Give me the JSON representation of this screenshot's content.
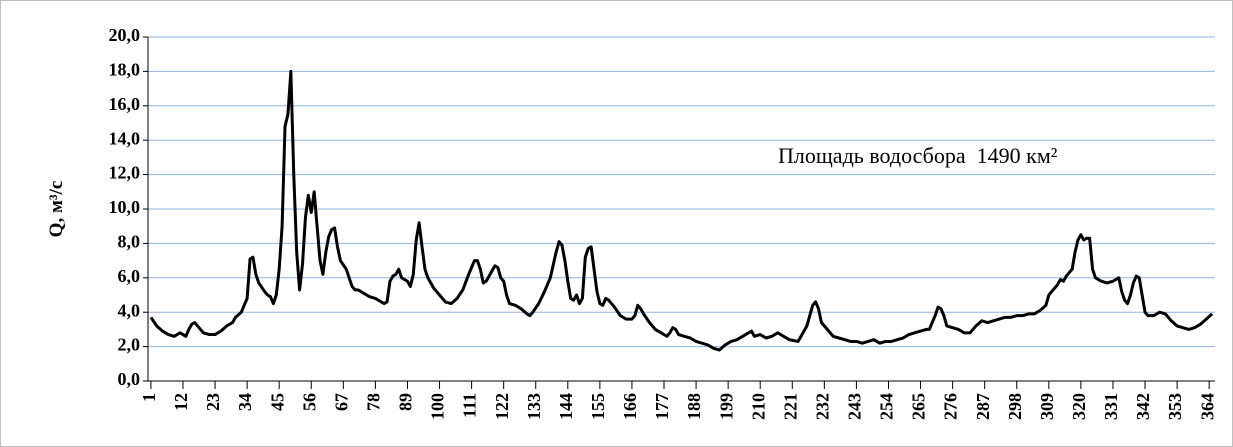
{
  "chart_data": {
    "type": "line",
    "y_label": "Q, м³/с",
    "annotation": "Площадь водосбора  1490 км²",
    "xlim": [
      0,
      366
    ],
    "xticks": [
      1,
      12,
      23,
      34,
      45,
      56,
      67,
      78,
      89,
      100,
      111,
      122,
      133,
      144,
      155,
      166,
      177,
      188,
      199,
      210,
      221,
      232,
      243,
      254,
      265,
      276,
      287,
      298,
      309,
      320,
      331,
      342,
      353,
      364
    ],
    "ylim": [
      0,
      20
    ],
    "yticks": [
      {
        "value": 0,
        "label": "0,0"
      },
      {
        "value": 2,
        "label": "2,0"
      },
      {
        "value": 4,
        "label": "4,0"
      },
      {
        "value": 6,
        "label": "6,0"
      },
      {
        "value": 8,
        "label": "8,0"
      },
      {
        "value": 10,
        "label": "10,0"
      },
      {
        "value": 12,
        "label": "12,0"
      },
      {
        "value": 14,
        "label": "14,0"
      },
      {
        "value": 16,
        "label": "16,0"
      },
      {
        "value": 18,
        "label": "18,0"
      },
      {
        "value": 20,
        "label": "20,0"
      }
    ],
    "grid": true,
    "grid_color": "#8eb4e3",
    "x": [
      1,
      3,
      5,
      7,
      9,
      11,
      12,
      13,
      14,
      15,
      16,
      17,
      19,
      21,
      23,
      25,
      27,
      29,
      30,
      32,
      33,
      34,
      35,
      36,
      37,
      38,
      40,
      41,
      42,
      43,
      44,
      45,
      46,
      47,
      48,
      49,
      50,
      51,
      52,
      53,
      54,
      55,
      56,
      57,
      58,
      59,
      60,
      61,
      62,
      63,
      64,
      65,
      66,
      68,
      69,
      70,
      71,
      72,
      73,
      74,
      76,
      78,
      80,
      81,
      82,
      83,
      84,
      85,
      86,
      87,
      89,
      90,
      91,
      92,
      93,
      94,
      95,
      96,
      98,
      100,
      102,
      104,
      106,
      108,
      110,
      112,
      113,
      114,
      115,
      116,
      118,
      119,
      120,
      121,
      122,
      123,
      124,
      126,
      128,
      130,
      131,
      132,
      134,
      136,
      138,
      140,
      141,
      142,
      143,
      144,
      145,
      146,
      147,
      148,
      149,
      150,
      151,
      152,
      153,
      154,
      155,
      156,
      157,
      158,
      160,
      162,
      164,
      166,
      167,
      168,
      169,
      170,
      172,
      174,
      176,
      178,
      179,
      180,
      181,
      182,
      184,
      186,
      188,
      190,
      192,
      194,
      196,
      198,
      200,
      202,
      204,
      206,
      207,
      208,
      210,
      212,
      214,
      216,
      218,
      220,
      223,
      226,
      228,
      229,
      230,
      231,
      233,
      235,
      237,
      239,
      241,
      243,
      245,
      247,
      249,
      251,
      253,
      255,
      257,
      259,
      261,
      263,
      265,
      267,
      268,
      270,
      271,
      272,
      273,
      274,
      276,
      278,
      280,
      282,
      284,
      286,
      288,
      290,
      292,
      294,
      296,
      298,
      300,
      302,
      304,
      306,
      308,
      309,
      310,
      312,
      313,
      314,
      315,
      317,
      318,
      319,
      320,
      321,
      322,
      323,
      324,
      325,
      327,
      329,
      331,
      332,
      333,
      334,
      335,
      336,
      337,
      338,
      339,
      340,
      341,
      342,
      343,
      345,
      347,
      349,
      351,
      353,
      355,
      357,
      359,
      361,
      363,
      365
    ],
    "series": [
      {
        "color": "#000000",
        "values": [
          3.7,
          3.2,
          2.9,
          2.7,
          2.6,
          2.8,
          2.7,
          2.6,
          3.0,
          3.3,
          3.4,
          3.2,
          2.8,
          2.7,
          2.7,
          2.9,
          3.2,
          3.4,
          3.7,
          4.0,
          4.4,
          4.8,
          7.1,
          7.2,
          6.2,
          5.7,
          5.2,
          5.0,
          4.9,
          4.5,
          5.0,
          6.5,
          9.0,
          14.8,
          15.5,
          18.0,
          12.0,
          7.5,
          5.3,
          6.8,
          9.5,
          10.8,
          9.8,
          11.0,
          9.0,
          7.0,
          6.2,
          7.5,
          8.4,
          8.8,
          8.9,
          7.8,
          7.0,
          6.5,
          6.0,
          5.5,
          5.3,
          5.3,
          5.2,
          5.1,
          4.9,
          4.8,
          4.6,
          4.5,
          4.6,
          5.8,
          6.1,
          6.2,
          6.5,
          6.0,
          5.8,
          5.5,
          6.2,
          8.2,
          9.2,
          7.8,
          6.5,
          6.0,
          5.4,
          5.0,
          4.6,
          4.5,
          4.8,
          5.3,
          6.2,
          7.0,
          7.0,
          6.5,
          5.7,
          5.8,
          6.4,
          6.7,
          6.6,
          6.0,
          5.8,
          5.0,
          4.5,
          4.4,
          4.2,
          3.9,
          3.8,
          4.0,
          4.5,
          5.2,
          6.0,
          7.5,
          8.1,
          7.9,
          7.0,
          5.8,
          4.8,
          4.7,
          5.0,
          4.5,
          4.8,
          7.2,
          7.7,
          7.8,
          6.5,
          5.2,
          4.5,
          4.4,
          4.8,
          4.7,
          4.3,
          3.8,
          3.6,
          3.6,
          3.8,
          4.4,
          4.2,
          3.9,
          3.4,
          3.0,
          2.8,
          2.6,
          2.8,
          3.1,
          3.0,
          2.7,
          2.6,
          2.5,
          2.3,
          2.2,
          2.1,
          1.9,
          1.8,
          2.1,
          2.3,
          2.4,
          2.6,
          2.8,
          2.9,
          2.6,
          2.7,
          2.5,
          2.6,
          2.8,
          2.6,
          2.4,
          2.3,
          3.2,
          4.4,
          4.6,
          4.2,
          3.4,
          3.0,
          2.6,
          2.5,
          2.4,
          2.3,
          2.3,
          2.2,
          2.3,
          2.4,
          2.2,
          2.3,
          2.3,
          2.4,
          2.5,
          2.7,
          2.8,
          2.9,
          3.0,
          3.0,
          3.8,
          4.3,
          4.2,
          3.8,
          3.2,
          3.1,
          3.0,
          2.8,
          2.8,
          3.2,
          3.5,
          3.4,
          3.5,
          3.6,
          3.7,
          3.7,
          3.8,
          3.8,
          3.9,
          3.9,
          4.1,
          4.4,
          5.0,
          5.2,
          5.6,
          5.9,
          5.8,
          6.1,
          6.5,
          7.5,
          8.2,
          8.5,
          8.2,
          8.3,
          8.3,
          6.5,
          6.0,
          5.8,
          5.7,
          5.8,
          5.9,
          6.0,
          5.2,
          4.7,
          4.5,
          5.0,
          5.7,
          6.1,
          6.0,
          5.0,
          4.0,
          3.8,
          3.8,
          4.0,
          3.9,
          3.5,
          3.2,
          3.1,
          3.0,
          3.1,
          3.3,
          3.6,
          3.9
        ]
      }
    ]
  }
}
